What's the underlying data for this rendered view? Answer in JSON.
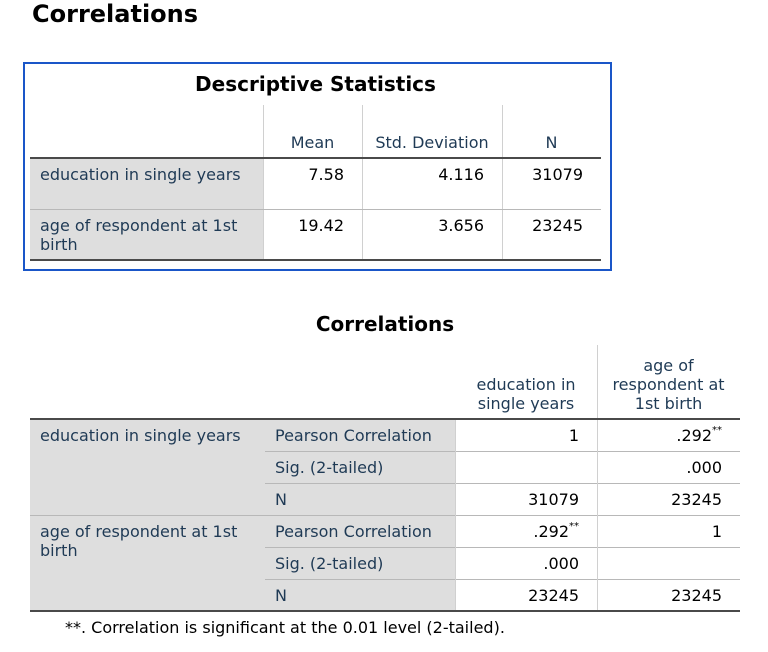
{
  "heading": "Correlations",
  "descriptive": {
    "title": "Descriptive Statistics",
    "columns": [
      "Mean",
      "Std. Deviation",
      "N"
    ],
    "rows": [
      {
        "label": "education in single years",
        "values": [
          "7.58",
          "4.116",
          "31079"
        ]
      },
      {
        "label": "age of respondent at 1st birth",
        "values": [
          "19.42",
          "3.656",
          "23245"
        ]
      }
    ]
  },
  "correlations": {
    "title": "Correlations",
    "columns": [
      "education in single years",
      "age of respondent at 1st birth"
    ],
    "rows": [
      {
        "label": "education in single years",
        "stats": [
          {
            "name": "Pearson Correlation",
            "cells": [
              {
                "text": "1"
              },
              {
                "text": ".292",
                "flag": "**"
              }
            ]
          },
          {
            "name": "Sig. (2-tailed)",
            "cells": [
              null,
              {
                "text": ".000"
              }
            ]
          },
          {
            "name": "N",
            "cells": [
              {
                "text": "31079"
              },
              {
                "text": "23245"
              }
            ]
          }
        ]
      },
      {
        "label": "age of respondent at 1st birth",
        "stats": [
          {
            "name": "Pearson Correlation",
            "cells": [
              {
                "text": ".292",
                "flag": "**"
              },
              {
                "text": "1"
              }
            ]
          },
          {
            "name": "Sig. (2-tailed)",
            "cells": [
              {
                "text": ".000"
              },
              null
            ]
          },
          {
            "name": "N",
            "cells": [
              {
                "text": "23245"
              },
              {
                "text": "23245"
              }
            ]
          }
        ]
      }
    ],
    "footnote": "**. Correlation is significant at the 0.01 level (2-tailed)."
  }
}
